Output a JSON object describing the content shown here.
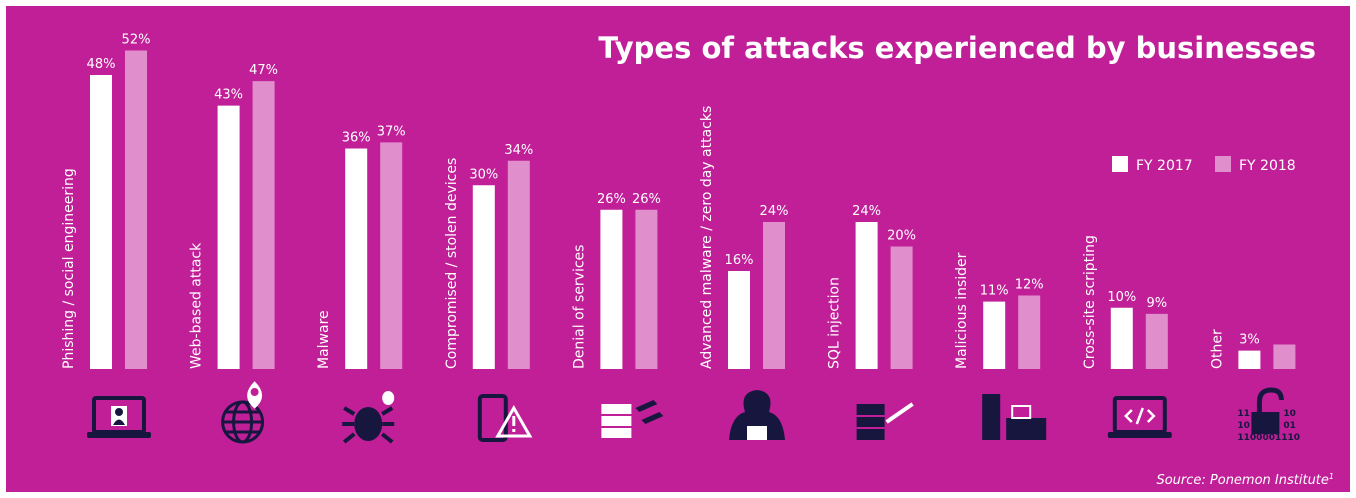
{
  "chart_data": {
    "type": "bar",
    "title": "Types of attacks experienced by businesses",
    "categories": [
      "Phishing / social engineering",
      "Web-based attack",
      "Malware",
      "Compromised / stolen devices",
      "Denial of services",
      "Advanced malware / zero day attacks",
      "SQL injection",
      "Malicious insider",
      "Cross-site scripting",
      "Other"
    ],
    "series": [
      {
        "name": "FY 2017",
        "color": "#ffffff",
        "values": [
          48,
          43,
          36,
          30,
          26,
          16,
          24,
          11,
          10,
          3
        ],
        "value_labels": [
          "48%",
          "43%",
          "36%",
          "30%",
          "26%",
          "16%",
          "24%",
          "11%",
          "10%",
          "3%"
        ]
      },
      {
        "name": "FY 2018",
        "color": "#e08fcc",
        "values": [
          52,
          47,
          37,
          34,
          26,
          24,
          20,
          12,
          9,
          4
        ],
        "value_labels": [
          "52%",
          "47%",
          "37%",
          "34%",
          "26%",
          "24%",
          "20%",
          "12%",
          "9%",
          null
        ]
      }
    ],
    "legend": "right",
    "source": "Source: Ponemon Institute",
    "source_note": "1"
  },
  "icon_text": [
    "11",
    "10",
    "10",
    "01",
    "1100001110"
  ]
}
